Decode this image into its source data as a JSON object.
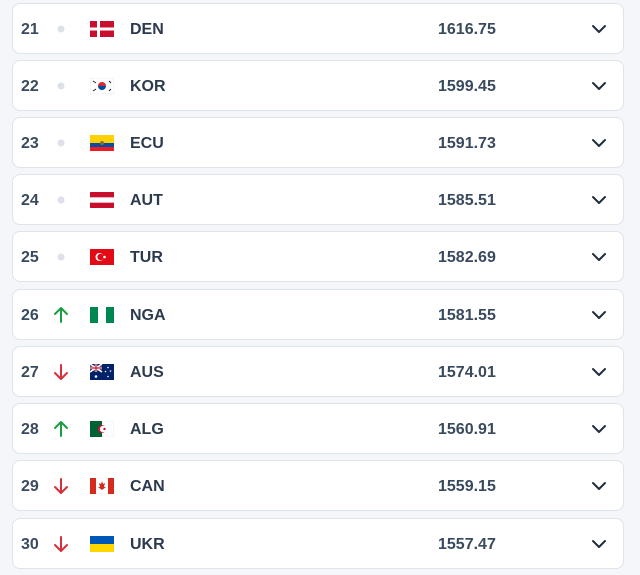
{
  "rows": [
    {
      "rank": 21,
      "code": "DEN",
      "points": 1616.75
    },
    {
      "rank": 22,
      "code": "KOR",
      "points": 1599.45
    },
    {
      "rank": 23,
      "code": "ECU",
      "points": 1591.73
    },
    {
      "rank": 24,
      "code": "AUT",
      "points": 1585.51
    },
    {
      "rank": 25,
      "code": "TUR",
      "points": 1582.69
    },
    {
      "rank": 26,
      "code": "NGA",
      "points": 1581.55
    },
    {
      "rank": 27,
      "code": "AUS",
      "points": 1574.01
    },
    {
      "rank": 28,
      "code": "ALG",
      "points": 1560.91
    },
    {
      "rank": 29,
      "code": "CAN",
      "points": 1559.15
    },
    {
      "rank": 30,
      "code": "UKR",
      "points": 1557.47
    }
  ]
}
